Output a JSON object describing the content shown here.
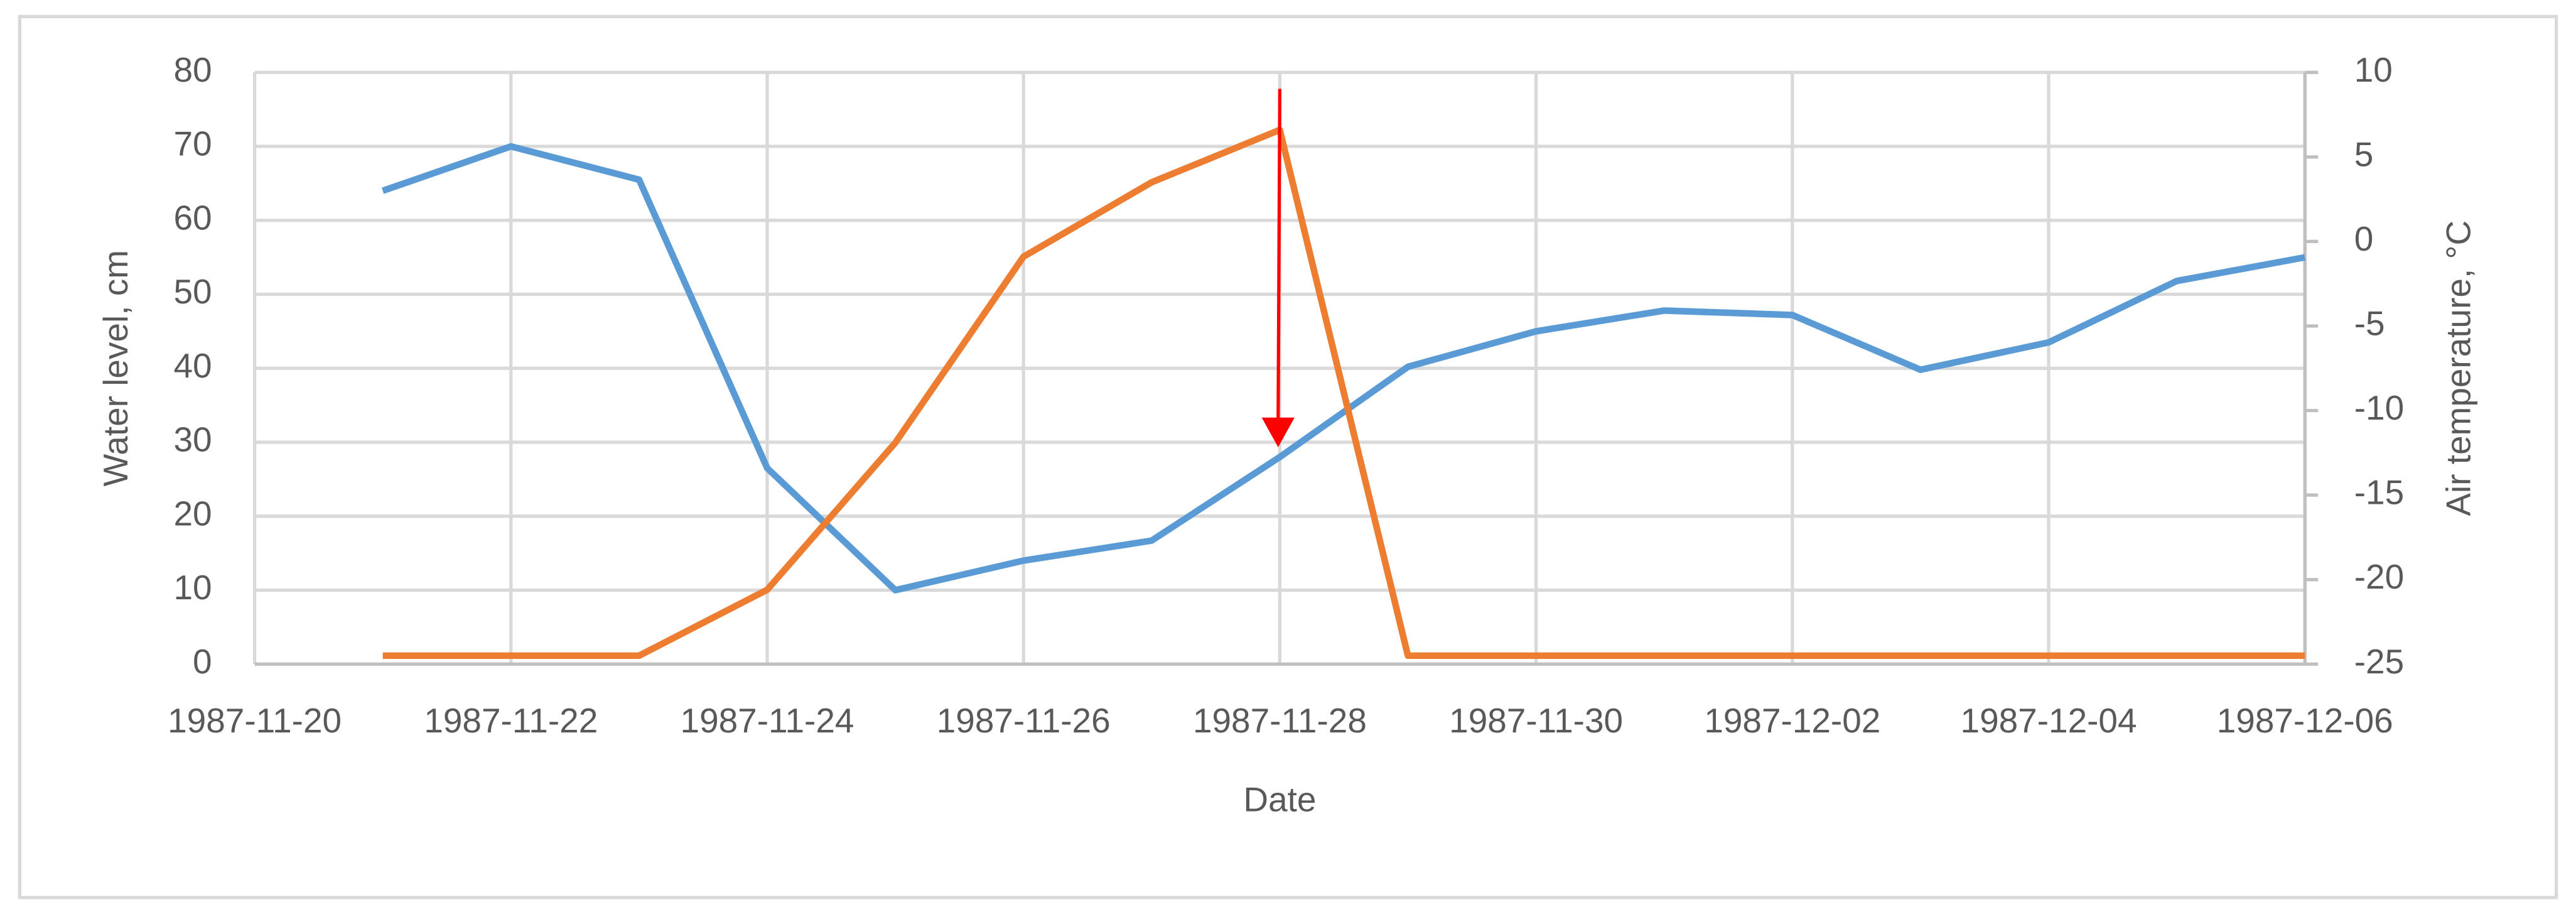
{
  "chart_data": {
    "type": "line",
    "x_label": "Date",
    "y_label": "Water level, cm",
    "y2_label": "Air temperature, °C",
    "x": [
      "1987-11-21",
      "1987-11-22",
      "1987-11-23",
      "1987-11-24",
      "1987-11-25",
      "1987-11-26",
      "1987-11-27",
      "1987-11-28",
      "1987-11-29",
      "1987-11-30",
      "1987-12-01",
      "1987-12-02",
      "1987-12-03",
      "1987-12-04",
      "1987-12-05",
      "1987-12-06"
    ],
    "series": [
      {
        "color": "#5b9bd5",
        "values": [
          64,
          70,
          65.5,
          26.5,
          10,
          14,
          16.7,
          28,
          40.2,
          45,
          47.8,
          47.2,
          39.8,
          43.5,
          51.8,
          55
        ]
      },
      {
        "color": "#ed7d31",
        "axis": "y2",
        "values": [
          -24.5,
          -24.5,
          -24.5,
          -20.6,
          -11.9,
          -0.9,
          3.5,
          6.6,
          -24.5,
          -24.5,
          -24.5,
          -24.5,
          -24.5,
          -24.5,
          -24.5,
          -24.5
        ]
      }
    ],
    "xlim": [
      "1987-11-20",
      "1987-12-06"
    ],
    "xticks": [
      "1987-11-20",
      "1987-11-22",
      "1987-11-24",
      "1987-11-26",
      "1987-11-28",
      "1987-11-30",
      "1987-12-02",
      "1987-12-04",
      "1987-12-06"
    ],
    "ylim": [
      0,
      80
    ],
    "yticks": [
      0,
      10,
      20,
      30,
      40,
      50,
      60,
      70,
      80
    ],
    "y2lim": [
      -25,
      10
    ],
    "y2ticks": [
      -25,
      -20,
      -15,
      -10,
      -5,
      0,
      5,
      10
    ],
    "grid": true
  }
}
